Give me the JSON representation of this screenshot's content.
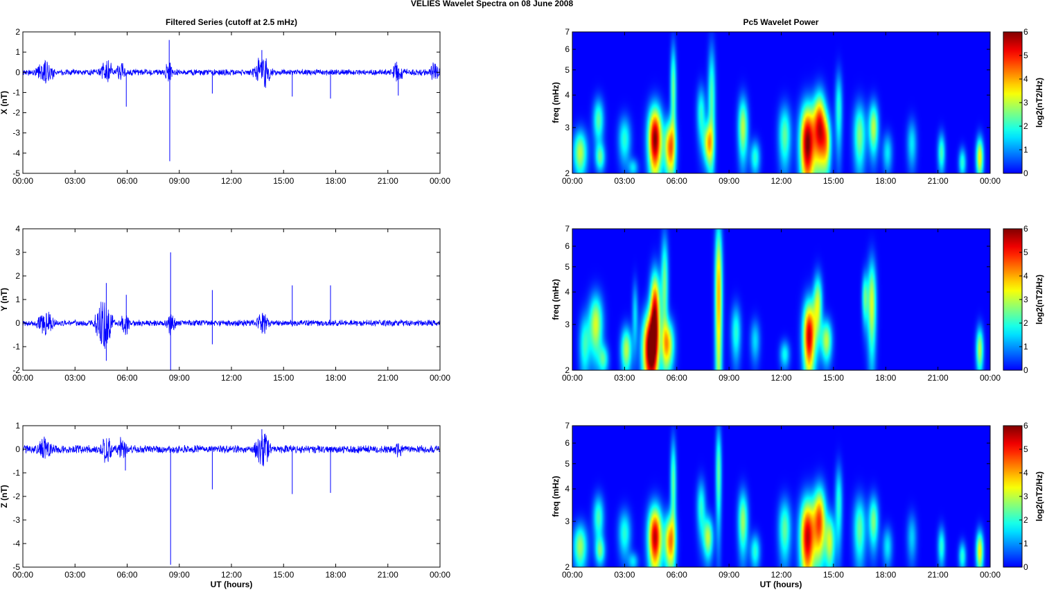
{
  "figure": {
    "title": "VELIES Wavelet Spectra on 08 June      2008",
    "left_title": "Filtered Series (cutoff at 2.5 mHz)",
    "right_title": "Pc5 Wavelet Power",
    "xlabel": "UT (hours)",
    "freq_label": "freq (mHz)",
    "colorbar_label": "log2(nT2/Hz)",
    "colorbar_ticks": [
      "0",
      "1",
      "2",
      "3",
      "4",
      "5",
      "6"
    ],
    "x_ticks": [
      "00:00",
      "03:00",
      "06:00",
      "09:00",
      "12:00",
      "15:00",
      "18:00",
      "21:00",
      "00:00"
    ],
    "freq_ticks": [
      "2",
      "3",
      "4",
      "5",
      "6",
      "7"
    ],
    "series_color": "#0000ff"
  },
  "chart_data": [
    {
      "type": "line",
      "ylabel": "X (nT)",
      "ylim": [
        -5,
        2
      ],
      "yticks": [
        "2",
        "1",
        "0",
        "-1",
        "-2",
        "-3",
        "-4",
        "-5"
      ],
      "xlim_hours": [
        0,
        24
      ],
      "noise_amplitude": 0.13,
      "bursts": [
        [
          1.3,
          0.5,
          0.55
        ],
        [
          4.8,
          0.35,
          0.7
        ],
        [
          5.6,
          0.3,
          0.5
        ],
        [
          8.4,
          0.25,
          0.5
        ],
        [
          13.8,
          0.45,
          0.9
        ],
        [
          21.6,
          0.3,
          0.6
        ],
        [
          23.7,
          0.3,
          0.45
        ]
      ],
      "spikes": [
        [
          5.95,
          -1.7
        ],
        [
          8.45,
          -4.4
        ],
        [
          8.42,
          1.6
        ],
        [
          10.9,
          -1.05
        ],
        [
          13.75,
          1.1
        ],
        [
          15.5,
          -1.2
        ],
        [
          17.7,
          -1.3
        ],
        [
          21.6,
          -1.15
        ],
        [
          24.0,
          -0.85
        ]
      ]
    },
    {
      "type": "line",
      "ylabel": "Y (nT)",
      "ylim": [
        -2,
        4
      ],
      "yticks": [
        "4",
        "3",
        "2",
        "1",
        "0",
        "-1",
        "-2"
      ],
      "xlim_hours": [
        0,
        24
      ],
      "noise_amplitude": 0.11,
      "bursts": [
        [
          1.3,
          0.5,
          0.45
        ],
        [
          4.7,
          0.45,
          1.2
        ],
        [
          5.9,
          0.25,
          0.5
        ],
        [
          8.5,
          0.25,
          0.6
        ],
        [
          13.8,
          0.35,
          0.5
        ]
      ],
      "spikes": [
        [
          4.8,
          1.7
        ],
        [
          4.8,
          -1.6
        ],
        [
          5.95,
          1.2
        ],
        [
          8.5,
          3.0
        ],
        [
          8.5,
          -2.0
        ],
        [
          10.9,
          1.4
        ],
        [
          10.9,
          -0.9
        ],
        [
          15.5,
          1.6
        ],
        [
          17.7,
          1.6
        ],
        [
          24.0,
          0.75
        ]
      ]
    },
    {
      "type": "line",
      "ylabel": "Z (nT)",
      "ylim": [
        -5,
        1
      ],
      "yticks": [
        "1",
        "0",
        "-1",
        "-2",
        "-3",
        "-4",
        "-5"
      ],
      "xlim_hours": [
        0,
        24
      ],
      "noise_amplitude": 0.14,
      "bursts": [
        [
          1.3,
          0.5,
          0.45
        ],
        [
          4.8,
          0.35,
          0.55
        ],
        [
          5.7,
          0.3,
          0.5
        ],
        [
          13.8,
          0.45,
          0.7
        ],
        [
          21.6,
          0.3,
          0.35
        ]
      ],
      "spikes": [
        [
          5.9,
          -0.9
        ],
        [
          8.5,
          -4.9
        ],
        [
          10.9,
          -1.7
        ],
        [
          13.75,
          0.85
        ],
        [
          15.5,
          -1.9
        ],
        [
          17.7,
          -1.85
        ],
        [
          24.0,
          -0.75
        ]
      ]
    },
    {
      "type": "heatmap",
      "xlabel": "",
      "ylabel": "freq (mHz)",
      "xlim_hours": [
        0,
        24
      ],
      "ylim_mhz": [
        2,
        7
      ],
      "clim": [
        0,
        6
      ],
      "colormap": "jet",
      "blobs": [
        [
          0.45,
          2.4,
          0.28,
          0.35,
          3.0
        ],
        [
          1.5,
          3.2,
          0.22,
          0.45,
          2.3
        ],
        [
          1.6,
          2.3,
          0.2,
          0.2,
          2.2
        ],
        [
          3.0,
          2.7,
          0.25,
          0.4,
          2.0
        ],
        [
          3.5,
          2.1,
          0.2,
          0.12,
          1.5
        ],
        [
          4.75,
          2.7,
          0.28,
          0.6,
          6.0
        ],
        [
          5.6,
          2.5,
          0.22,
          0.45,
          4.2
        ],
        [
          5.8,
          4.2,
          0.12,
          1.3,
          2.5
        ],
        [
          7.4,
          3.4,
          0.18,
          0.6,
          2.0
        ],
        [
          7.8,
          2.6,
          0.2,
          0.35,
          3.2
        ],
        [
          8.0,
          3.8,
          0.15,
          1.5,
          2.3
        ],
        [
          9.8,
          3.0,
          0.2,
          0.6,
          3.0
        ],
        [
          10.5,
          2.3,
          0.2,
          0.25,
          2.0
        ],
        [
          12.2,
          2.8,
          0.25,
          0.55,
          2.4
        ],
        [
          13.5,
          2.6,
          0.3,
          0.7,
          6.0
        ],
        [
          14.2,
          3.0,
          0.25,
          0.7,
          5.0
        ],
        [
          14.6,
          2.6,
          0.2,
          0.5,
          3.0
        ],
        [
          15.3,
          3.5,
          0.15,
          0.9,
          2.0
        ],
        [
          16.5,
          2.8,
          0.25,
          0.6,
          2.6
        ],
        [
          17.3,
          3.0,
          0.2,
          0.5,
          3.0
        ],
        [
          18.1,
          2.4,
          0.2,
          0.3,
          1.6
        ],
        [
          19.5,
          2.6,
          0.2,
          0.4,
          1.6
        ],
        [
          21.2,
          2.4,
          0.15,
          0.3,
          2.2
        ],
        [
          22.4,
          2.2,
          0.15,
          0.2,
          2.0
        ],
        [
          23.4,
          2.3,
          0.15,
          0.3,
          3.5
        ]
      ]
    },
    {
      "type": "heatmap",
      "xlabel": "",
      "ylabel": "freq (mHz)",
      "xlim_hours": [
        0,
        24
      ],
      "ylim_mhz": [
        2,
        7
      ],
      "clim": [
        0,
        6
      ],
      "colormap": "jet",
      "blobs": [
        [
          0.7,
          2.5,
          0.22,
          0.5,
          2.0
        ],
        [
          1.35,
          3.0,
          0.28,
          0.6,
          3.2
        ],
        [
          1.8,
          2.2,
          0.2,
          0.2,
          2.0
        ],
        [
          3.1,
          2.4,
          0.22,
          0.35,
          3.0
        ],
        [
          3.6,
          3.3,
          0.12,
          0.7,
          1.5
        ],
        [
          4.45,
          2.4,
          0.3,
          0.6,
          6.0
        ],
        [
          4.75,
          3.4,
          0.2,
          0.9,
          5.0
        ],
        [
          5.5,
          2.5,
          0.25,
          0.4,
          3.5
        ],
        [
          5.3,
          4.3,
          0.15,
          1.5,
          2.5
        ],
        [
          8.4,
          3.9,
          0.15,
          2.2,
          4.0
        ],
        [
          9.4,
          2.8,
          0.2,
          0.5,
          2.0
        ],
        [
          10.5,
          2.6,
          0.2,
          0.35,
          1.5
        ],
        [
          12.2,
          2.3,
          0.2,
          0.2,
          1.8
        ],
        [
          13.6,
          2.7,
          0.25,
          0.65,
          5.5
        ],
        [
          14.1,
          3.6,
          0.18,
          0.7,
          3.0
        ],
        [
          14.6,
          2.6,
          0.22,
          0.35,
          3.0
        ],
        [
          17.2,
          3.6,
          0.18,
          1.1,
          3.2
        ],
        [
          16.8,
          3.8,
          0.12,
          0.6,
          2.2
        ],
        [
          23.4,
          2.4,
          0.15,
          0.35,
          3.0
        ]
      ]
    },
    {
      "type": "heatmap",
      "xlabel": "",
      "ylabel": "freq (mHz)",
      "xlim_hours": [
        0,
        24
      ],
      "ylim_mhz": [
        2,
        7
      ],
      "clim": [
        0,
        6
      ],
      "colormap": "jet",
      "blobs": [
        [
          0.45,
          2.4,
          0.28,
          0.35,
          2.8
        ],
        [
          1.5,
          3.1,
          0.22,
          0.45,
          2.2
        ],
        [
          1.6,
          2.3,
          0.2,
          0.2,
          2.2
        ],
        [
          3.0,
          2.7,
          0.25,
          0.4,
          2.0
        ],
        [
          3.5,
          2.1,
          0.2,
          0.12,
          1.5
        ],
        [
          4.75,
          2.6,
          0.28,
          0.55,
          5.6
        ],
        [
          5.6,
          2.5,
          0.22,
          0.45,
          4.0
        ],
        [
          5.8,
          4.2,
          0.12,
          1.3,
          2.4
        ],
        [
          7.4,
          3.4,
          0.18,
          0.6,
          2.0
        ],
        [
          7.8,
          2.6,
          0.2,
          0.35,
          3.0
        ],
        [
          8.4,
          4.6,
          0.12,
          1.5,
          2.4
        ],
        [
          9.8,
          3.0,
          0.2,
          0.6,
          2.8
        ],
        [
          10.5,
          2.3,
          0.2,
          0.25,
          2.0
        ],
        [
          12.2,
          2.8,
          0.25,
          0.55,
          2.4
        ],
        [
          13.5,
          2.6,
          0.3,
          0.7,
          5.5
        ],
        [
          14.2,
          3.0,
          0.25,
          0.7,
          4.5
        ],
        [
          14.8,
          2.5,
          0.2,
          0.45,
          3.0
        ],
        [
          15.3,
          3.5,
          0.15,
          0.9,
          2.0
        ],
        [
          16.5,
          2.8,
          0.25,
          0.6,
          2.4
        ],
        [
          17.3,
          3.0,
          0.2,
          0.5,
          2.6
        ],
        [
          18.1,
          2.4,
          0.2,
          0.3,
          1.6
        ],
        [
          19.5,
          2.6,
          0.2,
          0.4,
          1.4
        ],
        [
          21.2,
          2.4,
          0.15,
          0.3,
          2.0
        ],
        [
          22.4,
          2.2,
          0.15,
          0.2,
          2.0
        ],
        [
          23.4,
          2.3,
          0.15,
          0.3,
          3.5
        ]
      ]
    }
  ]
}
